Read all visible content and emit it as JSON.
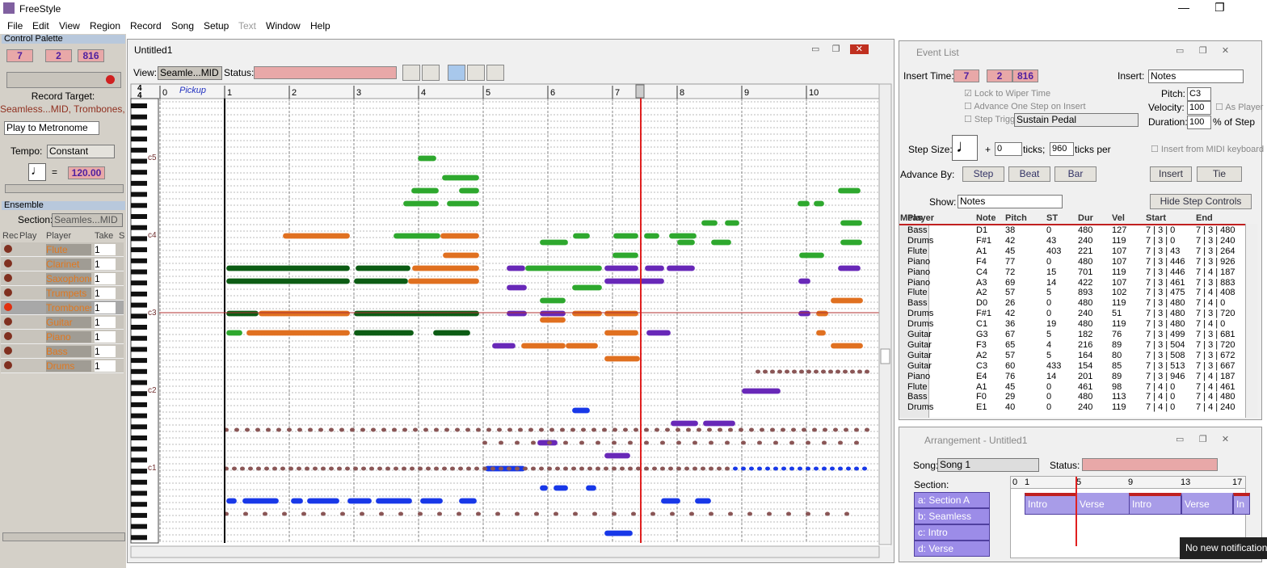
{
  "app": {
    "title": "FreeStyle",
    "menu": [
      "File",
      "Edit",
      "View",
      "Region",
      "Record",
      "Song",
      "Setup",
      "Text",
      "Window",
      "Help"
    ]
  },
  "control_palette": {
    "title": "Control Palette",
    "counter": [
      "7",
      "2",
      "816"
    ],
    "record_target_label": "Record Target:",
    "record_target": "Seamless...MID, Trombones, 1",
    "play_mode": "Play to Metronome",
    "tempo_label": "Tempo:",
    "tempo_mode": "Constant",
    "equals": "=",
    "tempo": "120.00"
  },
  "ensemble": {
    "title": "Ensemble",
    "section_label": "Section:",
    "section": "Seamles...MID",
    "headers": [
      "Rec",
      "Play",
      "Player",
      "Take",
      "S"
    ],
    "players": [
      {
        "name": "Flute",
        "take": "1"
      },
      {
        "name": "Clarinet",
        "take": "1"
      },
      {
        "name": "Saxophone",
        "take": "1"
      },
      {
        "name": "Trumpets",
        "take": "1"
      },
      {
        "name": "Trombones",
        "take": "1"
      },
      {
        "name": "Guitar",
        "take": "1"
      },
      {
        "name": "Piano",
        "take": "1"
      },
      {
        "name": "Bass",
        "take": "1"
      },
      {
        "name": "Drums",
        "take": "1"
      }
    ]
  },
  "editor": {
    "title": "Untitled1",
    "view_label": "View:",
    "view": "Seamle...MID",
    "status_label": "Status:",
    "time_signature": [
      "4",
      "4"
    ],
    "pickup": "Pickup",
    "measures": [
      "0",
      "1",
      "2",
      "3",
      "4",
      "5",
      "6",
      "7",
      "8",
      "9",
      "10"
    ],
    "octaves": [
      "c5",
      "c4",
      "c3",
      "c2",
      "c1"
    ]
  },
  "event_list": {
    "title": "Event List",
    "insert_time_label": "Insert Time:",
    "insert_time": [
      "7",
      "2",
      "816"
    ],
    "insert_label": "Insert:",
    "insert": "Notes",
    "pitch_label": "Pitch:",
    "pitch": "C3",
    "velocity_label": "Velocity:",
    "velocity": "100",
    "as_player": "As Player",
    "duration_label": "Duration:",
    "duration": "100",
    "duration_unit": "% of Step",
    "lock": "Lock to Wiper Time",
    "advance_one": "Advance One Step on Insert",
    "step_trigger": "Step Trigger",
    "trigger": "Sustain Pedal",
    "step_size_label": "Step Size:",
    "plus": "+",
    "ticks": "0",
    "ticks_label": "ticks;",
    "ticks_per": "960",
    "ticks_per_label": "ticks per",
    "midi": "Insert from MIDI keyboard",
    "advance_by_label": "Advance By:",
    "advance_buttons": [
      "Step",
      "Beat",
      "Bar"
    ],
    "insert_button": "Insert",
    "tie_button": "Tie",
    "show_label": "Show:",
    "show": "Notes",
    "hide_button": "Hide Step Controls",
    "columns": [
      "Meas",
      "Player",
      "Note",
      "Pitch",
      "ST",
      "Dur",
      "Vel",
      "Start",
      "End"
    ],
    "rows": [
      [
        "Bass",
        "D1",
        38,
        0,
        480,
        127,
        "7 | 3 | 0",
        "7 | 3 | 480"
      ],
      [
        "Drums",
        "F#1",
        42,
        43,
        240,
        119,
        "7 | 3 | 0",
        "7 | 3 | 240"
      ],
      [
        "Flute",
        "A1",
        45,
        403,
        221,
        107,
        "7 | 3 | 43",
        "7 | 3 | 264"
      ],
      [
        "Piano",
        "F4",
        77,
        0,
        480,
        107,
        "7 | 3 | 446",
        "7 | 3 | 926"
      ],
      [
        "Piano",
        "C4",
        72,
        15,
        701,
        119,
        "7 | 3 | 446",
        "7 | 4 | 187"
      ],
      [
        "Piano",
        "A3",
        69,
        14,
        422,
        107,
        "7 | 3 | 461",
        "7 | 3 | 883"
      ],
      [
        "Flute",
        "A2",
        57,
        5,
        893,
        102,
        "7 | 3 | 475",
        "7 | 4 | 408"
      ],
      [
        "Bass",
        "D0",
        26,
        0,
        480,
        119,
        "7 | 3 | 480",
        "7 | 4 | 0"
      ],
      [
        "Drums",
        "F#1",
        42,
        0,
        240,
        51,
        "7 | 3 | 480",
        "7 | 3 | 720"
      ],
      [
        "Drums",
        "C1",
        36,
        19,
        480,
        119,
        "7 | 3 | 480",
        "7 | 4 | 0"
      ],
      [
        "Guitar",
        "G3",
        67,
        5,
        182,
        76,
        "7 | 3 | 499",
        "7 | 3 | 681"
      ],
      [
        "Guitar",
        "F3",
        65,
        4,
        216,
        89,
        "7 | 3 | 504",
        "7 | 3 | 720"
      ],
      [
        "Guitar",
        "A2",
        57,
        5,
        164,
        80,
        "7 | 3 | 508",
        "7 | 3 | 672"
      ],
      [
        "Guitar",
        "C3",
        60,
        433,
        154,
        85,
        "7 | 3 | 513",
        "7 | 3 | 667"
      ],
      [
        "Piano",
        "E4",
        76,
        14,
        201,
        89,
        "7 | 3 | 946",
        "7 | 4 | 187"
      ],
      [
        "Flute",
        "A1",
        45,
        0,
        461,
        98,
        "7 | 4 | 0",
        "7 | 4 | 461"
      ],
      [
        "Bass",
        "F0",
        29,
        0,
        480,
        113,
        "7 | 4 | 0",
        "7 | 4 | 480"
      ],
      [
        "Drums",
        "E1",
        40,
        0,
        240,
        119,
        "7 | 4 | 0",
        "7 | 4 | 240"
      ]
    ]
  },
  "arrangement": {
    "title": "Arrangement - Untitled1",
    "song_label": "Song:",
    "song": "Song 1",
    "status_label": "Status:",
    "section_label": "Section:",
    "sections": [
      "a: Section A",
      "b: Seamless",
      "c: Intro",
      "d: Verse"
    ],
    "ruler": [
      "0",
      "1",
      "5",
      "9",
      "13",
      "17"
    ],
    "blocks": [
      "Intro",
      "Verse",
      "Intro",
      "Verse",
      "In"
    ]
  },
  "notification": "No new notifications"
}
